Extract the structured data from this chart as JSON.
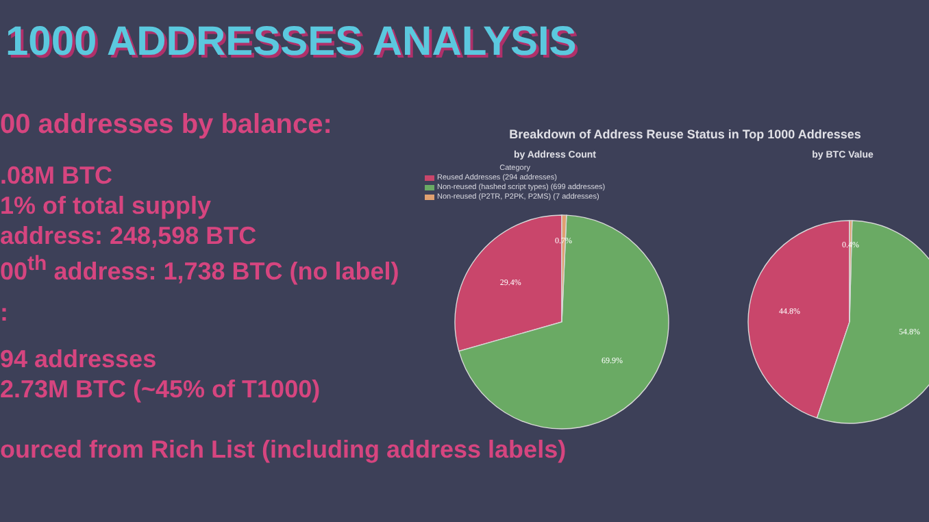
{
  "chart_data": [
    {
      "type": "other",
      "title": "1000 ADDRESSES ANALYSIS",
      "annotations": [
        "00 addresses by balance:",
        ".08M BTC",
        "1% of total supply",
        "address: 248,598 BTC",
        "00$^{th}$ address: 1,738 BTC (no label)",
        ":",
        "94 addresses",
        "2.73M BTC (~45% of T1000)",
        "ourced from Rich List (including address labels)"
      ]
    },
    {
      "type": "pie",
      "title": "Breakdown of Address Reuse Status in Top 1000 Addresses",
      "subtitle": "by Address Count",
      "legend_title": "Category",
      "legend": "top left",
      "categories": [
        "Reused Addresses (294 addresses)",
        "Non-reused (hashed script types) (699 addresses)",
        "Non-reused (P2TR, P2PK, P2MS) (7 addresses)"
      ],
      "values": [
        29.4,
        69.9,
        0.7
      ],
      "colors": [
        "#c9466b",
        "#6aaa64",
        "#e0a070"
      ],
      "value_labels": [
        "29.4%",
        "69.9%",
        "0.7%"
      ]
    },
    {
      "type": "pie",
      "subtitle": "by BTC Value",
      "categories": [
        null,
        null,
        null
      ],
      "values": [
        44.8,
        54.8,
        0.4
      ],
      "colors": [
        "#c9466b",
        "#6aaa64",
        "#e0a070"
      ],
      "value_labels": [
        "44.8%",
        "54.8%",
        "0.4%"
      ]
    }
  ]
}
